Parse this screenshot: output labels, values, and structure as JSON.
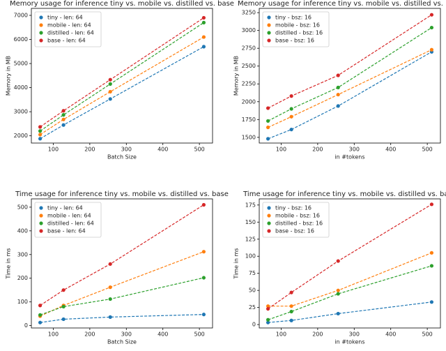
{
  "chart_data": [
    {
      "type": "line",
      "title": "Memory usage for inference tiny vs. mobile vs. distilled vs. base",
      "xlabel": "Batch Size",
      "ylabel": "Memory in MB",
      "x": [
        64,
        128,
        256,
        512
      ],
      "xlim": [
        40,
        536
      ],
      "xticks": [
        100,
        200,
        300,
        400,
        500
      ],
      "ylim": [
        1700,
        7290
      ],
      "yticks": [
        2000,
        3000,
        4000,
        5000,
        6000,
        7000
      ],
      "legend": "upper left",
      "linestyle": "dashed",
      "series": [
        {
          "name": "tiny - len: 64",
          "color": "#1f77b4",
          "values": [
            1880,
            2450,
            3530,
            5700
          ]
        },
        {
          "name": "mobile - len: 64",
          "color": "#ff7f0e",
          "values": [
            2050,
            2680,
            3830,
            6100
          ]
        },
        {
          "name": "distilled - len: 64",
          "color": "#2ca02c",
          "values": [
            2200,
            2870,
            4150,
            6700
          ]
        },
        {
          "name": "base - len: 64",
          "color": "#d62728",
          "values": [
            2370,
            3040,
            4330,
            6900
          ]
        }
      ]
    },
    {
      "type": "line",
      "title": "Memory usage for inference tiny vs. mobile vs. distilled vs. base",
      "xlabel": "in #tokens",
      "ylabel": "Memory in MB",
      "x": [
        64,
        128,
        256,
        512
      ],
      "xlim": [
        40,
        536
      ],
      "xticks": [
        100,
        200,
        300,
        400,
        500
      ],
      "ylim": [
        1420,
        3310
      ],
      "yticks": [
        1500,
        1750,
        2000,
        2250,
        2500,
        2750,
        3000,
        3250
      ],
      "legend": "upper left",
      "linestyle": "dashed",
      "series": [
        {
          "name": "tiny - bsz: 16",
          "color": "#1f77b4",
          "values": [
            1480,
            1610,
            1940,
            2700
          ]
        },
        {
          "name": "mobile - bsz: 16",
          "color": "#ff7f0e",
          "values": [
            1640,
            1790,
            2100,
            2730
          ]
        },
        {
          "name": "distilled - bsz: 16",
          "color": "#2ca02c",
          "values": [
            1730,
            1900,
            2200,
            3040
          ]
        },
        {
          "name": "base - bsz: 16",
          "color": "#d62728",
          "values": [
            1910,
            2080,
            2370,
            3220
          ]
        }
      ]
    },
    {
      "type": "line",
      "title": "Time usage for inference tiny vs. mobile vs. distilled vs. base",
      "xlabel": "Batch Size",
      "ylabel": "Time in ms",
      "x": [
        64,
        128,
        256,
        512
      ],
      "xlim": [
        40,
        536
      ],
      "xticks": [
        100,
        200,
        300,
        400,
        500
      ],
      "ylim": [
        -10,
        535
      ],
      "yticks": [
        0,
        100,
        200,
        300,
        400,
        500
      ],
      "legend": "upper left",
      "linestyle": "dashed",
      "series": [
        {
          "name": "tiny - len: 64",
          "color": "#1f77b4",
          "values": [
            13,
            27,
            36,
            47
          ]
        },
        {
          "name": "mobile - len: 64",
          "color": "#ff7f0e",
          "values": [
            40,
            85,
            162,
            312
          ]
        },
        {
          "name": "distilled - len: 64",
          "color": "#2ca02c",
          "values": [
            45,
            80,
            112,
            202
          ]
        },
        {
          "name": "base - len: 64",
          "color": "#d62728",
          "values": [
            85,
            150,
            260,
            510
          ]
        }
      ]
    },
    {
      "type": "line",
      "title": "Time usage for inference tiny vs. mobile vs. distilled vs. base",
      "xlabel": "in #tokens",
      "ylabel": "Time in ms",
      "x": [
        64,
        128,
        256,
        512
      ],
      "xlim": [
        40,
        536
      ],
      "xticks": [
        100,
        200,
        300,
        400,
        500
      ],
      "ylim": [
        -5,
        184
      ],
      "yticks": [
        0,
        25,
        50,
        75,
        100,
        125,
        150,
        175
      ],
      "legend": "upper left",
      "linestyle": "dashed",
      "series": [
        {
          "name": "tiny - bsz: 16",
          "color": "#1f77b4",
          "values": [
            3,
            6,
            16,
            33
          ]
        },
        {
          "name": "mobile - bsz: 16",
          "color": "#ff7f0e",
          "values": [
            27,
            27,
            50,
            105
          ]
        },
        {
          "name": "distilled - bsz: 16",
          "color": "#2ca02c",
          "values": [
            7,
            19,
            45,
            86
          ]
        },
        {
          "name": "base - bsz: 16",
          "color": "#d62728",
          "values": [
            23,
            47,
            93,
            176
          ]
        }
      ]
    }
  ]
}
